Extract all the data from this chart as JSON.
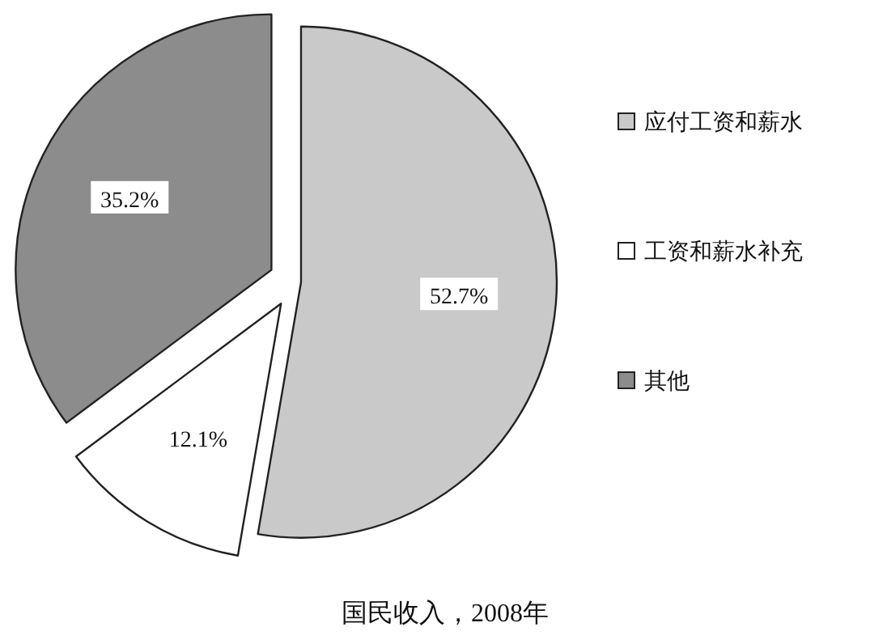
{
  "chart_data": {
    "type": "pie",
    "title": "国民收入，2008年",
    "categories": [
      "应付工资和薪水",
      "工资和薪水补充",
      "其他"
    ],
    "values": [
      52.7,
      12.1,
      35.2
    ],
    "colors": [
      "#c9c9c9",
      "#ffffff",
      "#8c8c8c"
    ],
    "value_labels": [
      "52.7%",
      "12.1%",
      "35.2%"
    ],
    "legend": "right"
  }
}
